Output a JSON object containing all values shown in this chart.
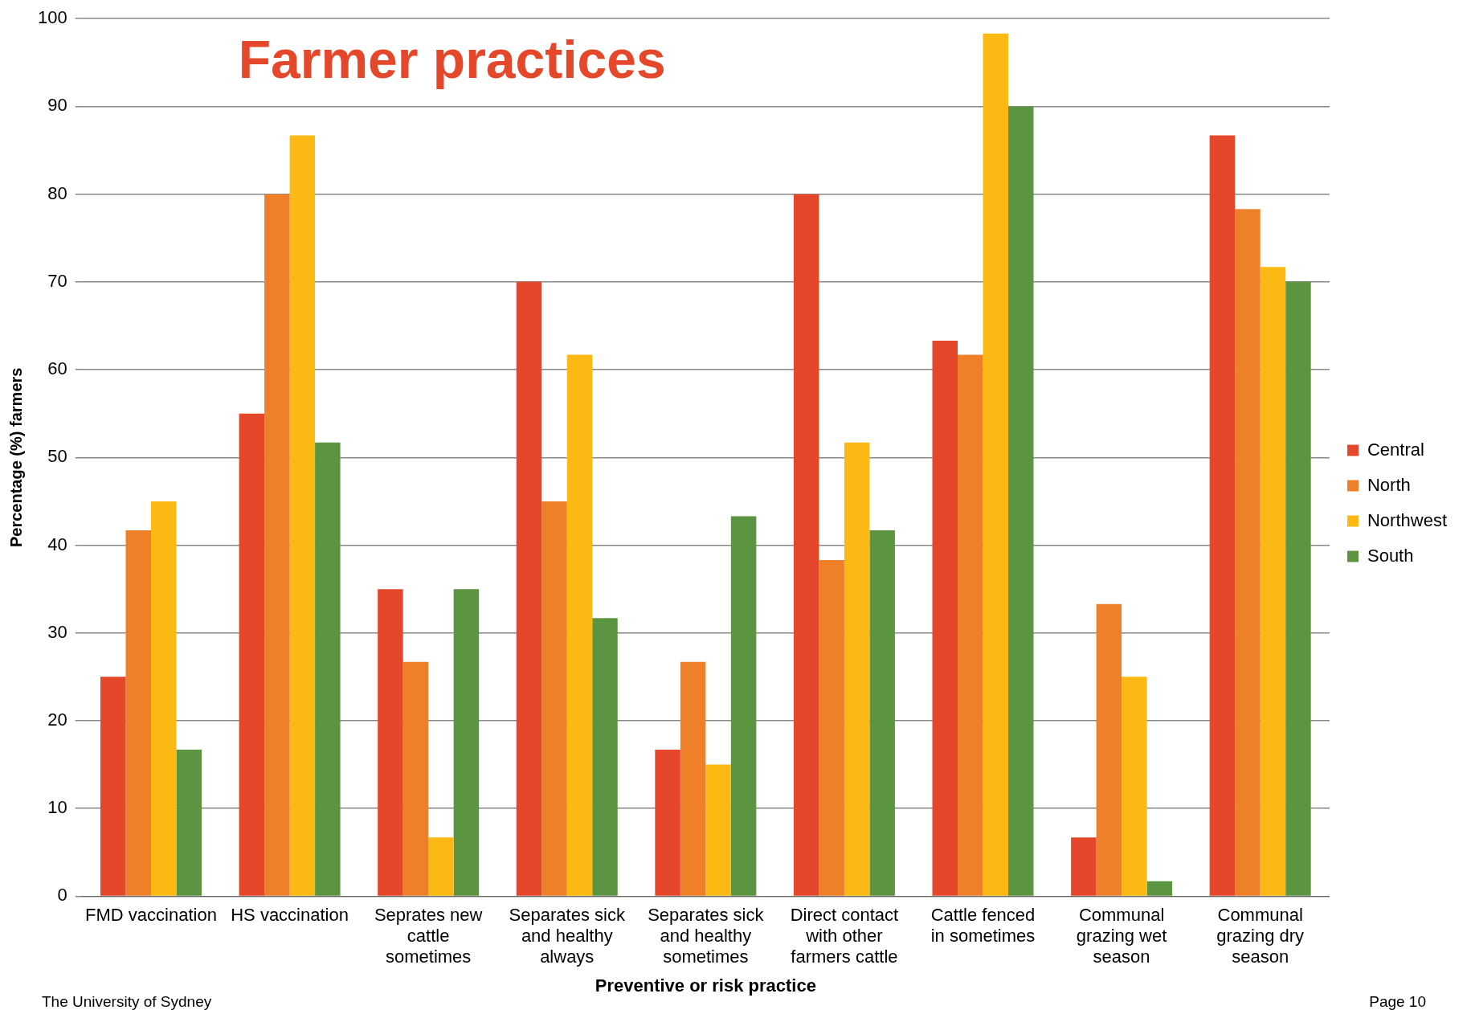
{
  "chart_data": {
    "type": "bar",
    "title": "Farmer practices",
    "xlabel": "Preventive or risk practice",
    "ylabel": "Percentage (%) farmers",
    "categories": [
      "FMD vaccination",
      "HS vaccination",
      "Seprates new cattle sometimes",
      "Separates sick and healthy always",
      "Separates sick and healthy sometimes",
      "Direct contact with other farmers cattle",
      "Cattle fenced in sometimes",
      "Communal grazing wet season",
      "Communal grazing dry season"
    ],
    "series": [
      {
        "name": "Central",
        "color": "#e5472a",
        "values": [
          25,
          55,
          35,
          70,
          16.7,
          80,
          63.3,
          6.7,
          86.7
        ]
      },
      {
        "name": "North",
        "color": "#ee8029",
        "values": [
          41.7,
          80,
          26.7,
          45,
          26.7,
          38.3,
          61.7,
          33.3,
          78.3
        ]
      },
      {
        "name": "Northwest",
        "color": "#fdb913",
        "values": [
          45,
          86.7,
          6.7,
          61.7,
          15,
          51.7,
          98.3,
          25,
          71.7
        ]
      },
      {
        "name": "South",
        "color": "#5c9541",
        "values": [
          16.7,
          51.7,
          35,
          31.7,
          43.3,
          41.7,
          90,
          1.7,
          70
        ]
      }
    ],
    "ylim": [
      0,
      100
    ],
    "yticks": [
      0,
      10,
      20,
      30,
      40,
      50,
      60,
      70,
      80,
      90,
      100
    ],
    "grid": "y",
    "legend": "right",
    "annotations": [
      "The University of Sydney",
      "Page 10"
    ]
  }
}
